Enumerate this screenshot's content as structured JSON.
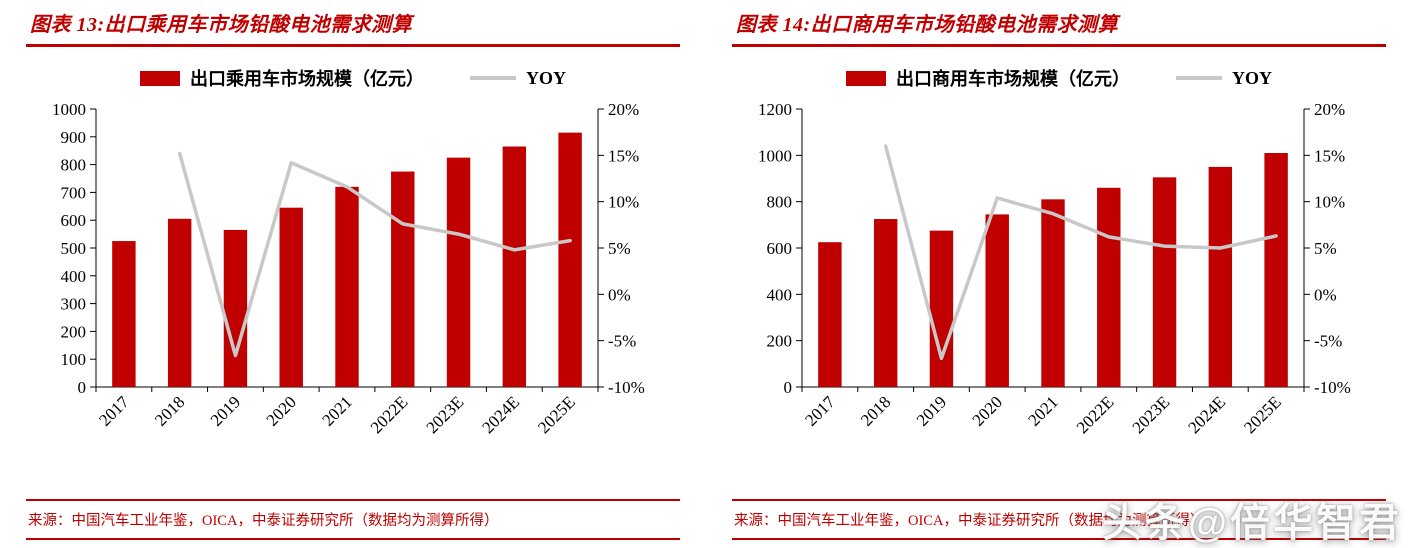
{
  "colors": {
    "bar": "#C00000",
    "line": "#C8C8C8",
    "accent": "#C00000",
    "axis": "#000000"
  },
  "watermark": "头条@倍华智君",
  "charts": [
    {
      "title": "图表 13:出口乘用车市场铅酸电池需求测算",
      "legend": {
        "bar_label": "出口乘用车市场规模（亿元）",
        "line_label": "YOY"
      },
      "source": "来源：中国汽车工业年鉴，OICA，中泰证券研究所（数据均为测算所得）",
      "chart_data": {
        "type": "bar+line",
        "categories": [
          "2017",
          "2018",
          "2019",
          "2020",
          "2021",
          "2022E",
          "2023E",
          "2024E",
          "2025E"
        ],
        "series": [
          {
            "name": "出口乘用车市场规模（亿元）",
            "type": "bar",
            "axis": "left",
            "values": [
              525,
              605,
              565,
              645,
              720,
              775,
              825,
              865,
              915
            ]
          },
          {
            "name": "YOY",
            "type": "line",
            "axis": "right",
            "values": [
              null,
              15.2,
              -6.6,
              14.2,
              11.6,
              7.6,
              6.5,
              4.8,
              5.8
            ]
          }
        ],
        "left_axis": {
          "min": 0,
          "max": 1000,
          "step": 100
        },
        "right_axis": {
          "min": -10,
          "max": 20,
          "step": 5,
          "suffix": "%"
        },
        "grid": false,
        "legend_position": "top"
      }
    },
    {
      "title": "图表 14:出口商用车市场铅酸电池需求测算",
      "legend": {
        "bar_label": "出口商用车市场规模（亿元）",
        "line_label": "YOY"
      },
      "source": "来源：中国汽车工业年鉴，OICA，中泰证券研究所（数据均为测算所得）",
      "chart_data": {
        "type": "bar+line",
        "categories": [
          "2017",
          "2018",
          "2019",
          "2020",
          "2021",
          "2022E",
          "2023E",
          "2024E",
          "2025E"
        ],
        "series": [
          {
            "name": "出口商用车市场规模（亿元）",
            "type": "bar",
            "axis": "left",
            "values": [
              625,
              725,
              675,
              745,
              810,
              860,
              905,
              950,
              1010
            ]
          },
          {
            "name": "YOY",
            "type": "line",
            "axis": "right",
            "values": [
              null,
              16.0,
              -6.9,
              10.4,
              8.7,
              6.2,
              5.2,
              5.0,
              6.3
            ]
          }
        ],
        "left_axis": {
          "min": 0,
          "max": 1200,
          "step": 200
        },
        "right_axis": {
          "min": -10,
          "max": 20,
          "step": 5,
          "suffix": "%"
        },
        "grid": false,
        "legend_position": "top"
      }
    }
  ]
}
